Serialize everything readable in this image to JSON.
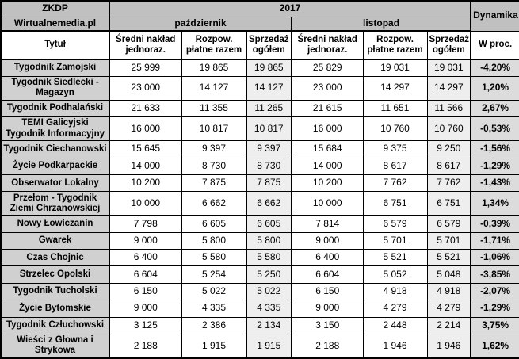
{
  "colors": {
    "header_bg": "#c0c0c0",
    "title_col_bg": "#d0d0d0",
    "shaded_col_bg": "#eeeeee",
    "dynamics_col_bg": "#dcdcdc",
    "border_color": "#000000",
    "text_color": "#000000"
  },
  "chart_data": {
    "type": "table",
    "source": "ZKDP",
    "brand": "Wirtualnemedia.pl",
    "year": "2017",
    "months": [
      "październik",
      "listopad"
    ],
    "dynamics_label": "Dynamika",
    "dynamics_sublabel": "W proc.",
    "title_column_label": "Tytuł",
    "metric_labels": [
      "Średni nakład jednoraz.",
      "Rozpow. płatne razem",
      "Sprzedaż ogółem"
    ],
    "rows": [
      {
        "title": "Tygodnik Zamojski",
        "october": [
          "25 999",
          "19 865",
          "19 865"
        ],
        "november": [
          "25 829",
          "19 031",
          "19 031"
        ],
        "dynamics": "-4,20%"
      },
      {
        "title": "Tygodnik Siedlecki - Magazyn",
        "october": [
          "23 000",
          "14 127",
          "14 127"
        ],
        "november": [
          "23 000",
          "14 297",
          "14 297"
        ],
        "dynamics": "1,20%"
      },
      {
        "title": "Tygodnik Podhalański",
        "october": [
          "21 633",
          "11 355",
          "11 265"
        ],
        "november": [
          "21 615",
          "11 651",
          "11 566"
        ],
        "dynamics": "2,67%"
      },
      {
        "title": "TEMI Galicyjski Tygodnik Informacyjny",
        "october": [
          "16 000",
          "10 817",
          "10 817"
        ],
        "november": [
          "16 000",
          "10 760",
          "10 760"
        ],
        "dynamics": "-0,53%"
      },
      {
        "title": "Tygodnik Ciechanowski",
        "october": [
          "15 645",
          "9 397",
          "9 397"
        ],
        "november": [
          "15 684",
          "9 375",
          "9 250"
        ],
        "dynamics": "-1,56%"
      },
      {
        "title": "Życie Podkarpackie",
        "october": [
          "14 000",
          "8 730",
          "8 730"
        ],
        "november": [
          "14 000",
          "8 617",
          "8 617"
        ],
        "dynamics": "-1,29%"
      },
      {
        "title": "Obserwator Lokalny",
        "october": [
          "10 200",
          "7 875",
          "7 875"
        ],
        "november": [
          "10 200",
          "7 762",
          "7 762"
        ],
        "dynamics": "-1,43%"
      },
      {
        "title": "Przełom - Tygodnik Ziemi Chrzanowskiej",
        "october": [
          "10 000",
          "6 662",
          "6 662"
        ],
        "november": [
          "10 000",
          "6 751",
          "6 751"
        ],
        "dynamics": "1,34%"
      },
      {
        "title": "Nowy Łowiczanin",
        "october": [
          "7 798",
          "6 605",
          "6 605"
        ],
        "november": [
          "7 814",
          "6 579",
          "6 579"
        ],
        "dynamics": "-0,39%"
      },
      {
        "title": "Gwarek",
        "october": [
          "9 000",
          "5 800",
          "5 800"
        ],
        "november": [
          "9 000",
          "5 701",
          "5 701"
        ],
        "dynamics": "-1,71%"
      },
      {
        "title": "Czas Chojnic",
        "october": [
          "6 400",
          "5 580",
          "5 580"
        ],
        "november": [
          "6 400",
          "5 521",
          "5 521"
        ],
        "dynamics": "-1,06%"
      },
      {
        "title": "Strzelec Opolski",
        "october": [
          "6 604",
          "5 254",
          "5 250"
        ],
        "november": [
          "6 604",
          "5 052",
          "5 048"
        ],
        "dynamics": "-3,85%"
      },
      {
        "title": "Tygodnik Tucholski",
        "october": [
          "6 150",
          "5 022",
          "5 022"
        ],
        "november": [
          "6 150",
          "4 918",
          "4 918"
        ],
        "dynamics": "-2,07%"
      },
      {
        "title": "Życie Bytomskie",
        "october": [
          "9 000",
          "4 335",
          "4 335"
        ],
        "november": [
          "9 000",
          "4 279",
          "4 279"
        ],
        "dynamics": "-1,29%"
      },
      {
        "title": "Tygodnik Człuchowski",
        "october": [
          "3 125",
          "2 386",
          "2 134"
        ],
        "november": [
          "3 150",
          "2 448",
          "2 214"
        ],
        "dynamics": "3,75%"
      },
      {
        "title": "Wieści z Głowna i Strykowa",
        "october": [
          "2 188",
          "1 915",
          "1 915"
        ],
        "november": [
          "2 188",
          "1 946",
          "1 946"
        ],
        "dynamics": "1,62%"
      }
    ]
  }
}
